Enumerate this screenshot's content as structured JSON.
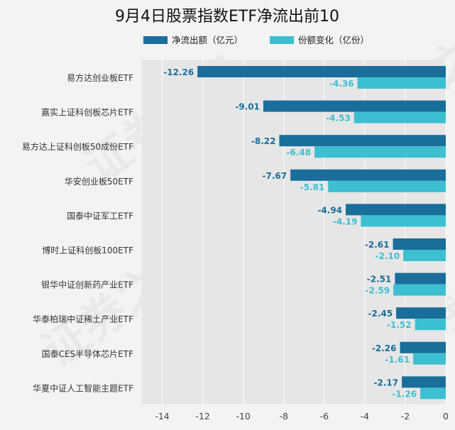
{
  "chart_data": {
    "type": "bar",
    "orientation": "horizontal",
    "title": "9月4日股票指数ETF净流出前10",
    "xlabel": "",
    "ylabel": "",
    "xlim": [
      -15,
      0
    ],
    "xticks": [
      "-14",
      "-12",
      "-10",
      "-8",
      "-6",
      "-4",
      "-2",
      "0"
    ],
    "xtick_values": [
      -14,
      -12,
      -10,
      -8,
      -6,
      -4,
      -2,
      0
    ],
    "grid": true,
    "legend_position": "top",
    "categories": [
      "易方达创业板ETF",
      "嘉实上证科创板芯片ETF",
      "易方达上证科创板50成份ETF",
      "华安创业板50ETF",
      "国泰中证军工ETF",
      "博时上证科创板100ETF",
      "银华中证创新药产业ETF",
      "华泰柏瑞中证稀土产业ETF",
      "国泰CES半导体芯片ETF",
      "华夏中证人工智能主题ETF"
    ],
    "series": [
      {
        "name": "净流出额（亿元）",
        "color": "#1a6e9b",
        "values": [
          -12.26,
          -9.01,
          -8.22,
          -7.67,
          -4.94,
          -2.61,
          -2.51,
          -2.45,
          -2.26,
          -2.17
        ],
        "labels": [
          "-12.26",
          "-9.01",
          "-8.22",
          "-7.67",
          "-4.94",
          "-2.61",
          "-2.51",
          "-2.45",
          "-2.26",
          "-2.17"
        ]
      },
      {
        "name": "份额变化（亿份）",
        "color": "#3cbfd1",
        "values": [
          -4.36,
          -4.53,
          -6.48,
          -5.81,
          -4.19,
          -2.1,
          -2.59,
          -1.52,
          -1.61,
          -1.26
        ],
        "labels": [
          "-4.36",
          "-4.53",
          "-6.48",
          "-5.81",
          "-4.19",
          "-2.10",
          "-2.59",
          "-1.52",
          "-1.61",
          "-1.26"
        ]
      }
    ],
    "watermark": "证券之星"
  }
}
